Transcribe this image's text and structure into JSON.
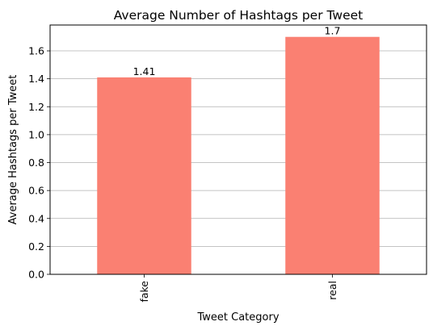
{
  "chart_data": {
    "type": "bar",
    "title": "Average Number of Hashtags per Tweet",
    "xlabel": "Tweet Category",
    "ylabel": "Average Hashtags per Tweet",
    "categories": [
      "fake",
      "real"
    ],
    "values": [
      1.41,
      1.7
    ],
    "value_labels": [
      "1.41",
      "1.7"
    ],
    "ylim": [
      0,
      1.785
    ],
    "yticks": [
      0.0,
      0.2,
      0.4,
      0.6,
      0.8,
      1.0,
      1.2,
      1.4,
      1.6
    ],
    "ytick_labels": [
      "0.0",
      "0.2",
      "0.4",
      "0.6",
      "0.8",
      "1.0",
      "1.2",
      "1.4",
      "1.6"
    ],
    "grid": "y",
    "bar_color": "#fa8072"
  }
}
